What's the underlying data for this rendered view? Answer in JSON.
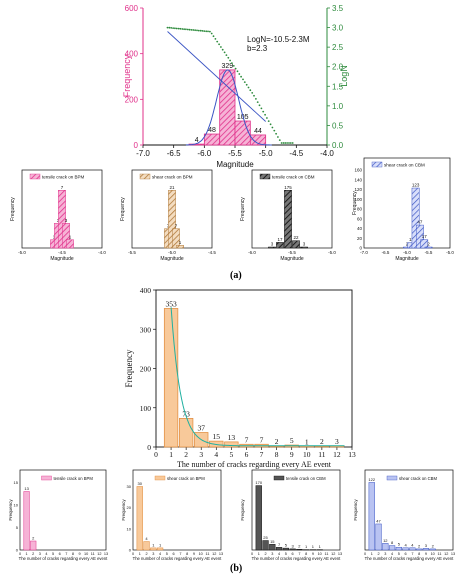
{
  "panel_labels": {
    "a": "(a)",
    "b": "(b)"
  },
  "colors": {
    "pink": "#e0308a",
    "green": "#2e8b3d",
    "blue": "#3b55c4",
    "orange_fill": "#f8c99a",
    "orange_edge": "#e08a3a",
    "teal": "#20b0a0",
    "black": "#111111",
    "pink_light": "#f6b3d6",
    "blue_light": "#b9c3f2"
  },
  "chart_data": [
    {
      "id": "a-main",
      "type": "bar",
      "xlabel": "Magnitude",
      "ylabel": "Frequency",
      "y2label": "LogN",
      "xlim": [
        -7.0,
        -4.0
      ],
      "ylim": [
        0,
        600
      ],
      "y2lim": [
        0,
        3.5
      ],
      "xticks": [
        "-7.0",
        "-6.5",
        "-6.0",
        "-5.5",
        "-5.0",
        "-4.5",
        "-4.0"
      ],
      "yticks": [
        "0",
        "200",
        "400",
        "600"
      ],
      "y2ticks": [
        "0.0",
        "0.5",
        "1.0",
        "1.5",
        "2.0",
        "2.5",
        "3.0",
        "3.5"
      ],
      "bins": [
        {
          "x0": -6.0,
          "x1": -5.75,
          "value": 48
        },
        {
          "x0": -5.75,
          "x1": -5.5,
          "value": 329
        },
        {
          "x0": -5.5,
          "x1": -5.25,
          "value": 105
        },
        {
          "x0": -5.25,
          "x1": -5.0,
          "value": 44
        },
        {
          "x0": -6.25,
          "x1": -6.0,
          "value": 4
        }
      ],
      "data_labels": [
        "48",
        "329",
        "105",
        "44",
        "4"
      ],
      "annotation": [
        "LogN=-10.5-2.3M",
        "b=2.3"
      ],
      "fit_line_y2": [
        [
          -6.6,
          2.9
        ],
        [
          -5.0,
          0.6
        ]
      ]
    },
    {
      "id": "a-1",
      "type": "bar",
      "legend": "tensile crack on BPM",
      "ylabel": "Frequency",
      "xlabel": "Magnitude",
      "xlim": [
        -5.0,
        -4.0
      ],
      "xticks": [
        "-5.0",
        "-4.5",
        "-4.0"
      ],
      "categories": [
        -4.6,
        -4.55,
        -4.5,
        -4.45,
        -4.4
      ],
      "values": [
        1,
        3,
        7,
        3,
        1
      ],
      "data_labels": [
        "1",
        "3",
        "7",
        "3",
        "1"
      ],
      "ymax": 8
    },
    {
      "id": "a-2",
      "type": "bar",
      "legend": "shear crack on BPM",
      "ylabel": "Frequency",
      "xlabel": "Magnitude",
      "xlim": [
        -5.5,
        -4.5
      ],
      "xticks": [
        "-5.5",
        "-5.0",
        "-4.5"
      ],
      "categories": [
        -5.05,
        -5.0,
        -4.95,
        -4.9
      ],
      "values": [
        7,
        21,
        7,
        1
      ],
      "data_labels": [
        "7",
        "21",
        "7",
        "1"
      ],
      "ymax": 24
    },
    {
      "id": "a-3",
      "type": "bar",
      "legend": "tensile crack on CBM",
      "ylabel": "Frequency",
      "xlabel": "Magnitude",
      "xlim": [
        -6.0,
        -5.0
      ],
      "xticks": [
        "-6.0",
        "-5.5",
        "-5.0"
      ],
      "categories": [
        -5.75,
        -5.65,
        -5.55,
        -5.45,
        -5.35
      ],
      "values": [
        3,
        17,
        175,
        22,
        3
      ],
      "data_labels": [
        "3",
        "17",
        "175",
        "22",
        "3"
      ],
      "ymax": 200
    },
    {
      "id": "a-4",
      "type": "bar",
      "legend": "shear crack on CBM",
      "ylabel": "Frequency",
      "xlabel": "Magnitude",
      "xlim": [
        -7.0,
        -5.0
      ],
      "xticks": [
        "-7.0",
        "-6.5",
        "-6.0",
        "-5.5",
        "-5.0"
      ],
      "yticks": [
        "0",
        "20",
        "40",
        "60",
        "80",
        "100",
        "120",
        "140",
        "160"
      ],
      "categories": [
        -6.0,
        -5.9,
        -5.8,
        -5.7,
        -5.6,
        -5.5
      ],
      "values": [
        2,
        11,
        123,
        47,
        17,
        2
      ],
      "data_labels": [
        "2",
        "11",
        "123",
        "47",
        "17",
        "2"
      ],
      "ymax": 160
    },
    {
      "id": "b-main",
      "type": "bar",
      "xlabel": "The number of cracks regarding every AE event",
      "ylabel": "Frequency",
      "xlim": [
        0,
        13
      ],
      "ylim": [
        0,
        400
      ],
      "xticks": [
        "0",
        "1",
        "2",
        "3",
        "4",
        "5",
        "6",
        "7",
        "8",
        "9",
        "10",
        "11",
        "12",
        "13"
      ],
      "yticks": [
        "0",
        "100",
        "200",
        "300",
        "400"
      ],
      "categories": [
        1,
        2,
        3,
        4,
        5,
        6,
        7,
        8,
        9,
        10,
        11,
        12
      ],
      "values": [
        353,
        73,
        37,
        15,
        13,
        7,
        7,
        2,
        5,
        1,
        2,
        3
      ],
      "data_labels": [
        "353",
        "73",
        "37",
        "15",
        "13",
        "7",
        "7",
        "2",
        "5",
        "1",
        "2",
        "3"
      ]
    },
    {
      "id": "b-1",
      "type": "bar",
      "legend": "tensile crack on BPM",
      "ylabel": "Frequency",
      "xlabel": "The number of cracks regarding every AE event",
      "xlim": [
        0,
        13
      ],
      "categories": [
        1,
        2
      ],
      "values": [
        13,
        2
      ],
      "data_labels": [
        "13",
        "2"
      ],
      "ymax": 16,
      "yticks": [
        "0",
        "5",
        "10",
        "15"
      ]
    },
    {
      "id": "b-2",
      "type": "bar",
      "legend": "shear crack on BPM",
      "ylabel": "Frequency",
      "xlabel": "The number of cracks regarding every AE event",
      "xlim": [
        0,
        13
      ],
      "categories": [
        1,
        2,
        3,
        4
      ],
      "values": [
        30,
        4,
        1,
        1
      ],
      "data_labels": [
        "30",
        "4",
        "1",
        "1"
      ],
      "ymax": 34,
      "yticks": [
        "0",
        "10",
        "20",
        "30"
      ]
    },
    {
      "id": "b-3",
      "type": "bar",
      "legend": "tensile crack on CBM",
      "ylabel": "Frequency",
      "xlabel": "The number of cracks regarding every AE event",
      "xlim": [
        0,
        13
      ],
      "categories": [
        1,
        2,
        3,
        4,
        5,
        6,
        7,
        8,
        9,
        10
      ],
      "values": [
        170,
        25,
        15,
        7,
        5,
        3,
        2,
        1,
        1,
        1
      ],
      "data_labels": [
        "170",
        "25",
        "15",
        "7",
        "5",
        "3",
        "2",
        "1",
        "1",
        "1"
      ],
      "ymax": 190
    },
    {
      "id": "b-4",
      "type": "bar",
      "legend": "shear crack on CBM",
      "ylabel": "Frequency",
      "xlabel": "The number of cracks regarding every AE event",
      "xlim": [
        0,
        13
      ],
      "categories": [
        1,
        2,
        3,
        4,
        5,
        6,
        7,
        8,
        9,
        10
      ],
      "values": [
        122,
        47,
        12,
        8,
        5,
        4,
        4,
        2,
        3,
        2
      ],
      "data_labels": [
        "122",
        "47",
        "12",
        "8",
        "5",
        "4",
        "4",
        "2",
        "3",
        "2"
      ],
      "ymax": 130
    }
  ]
}
